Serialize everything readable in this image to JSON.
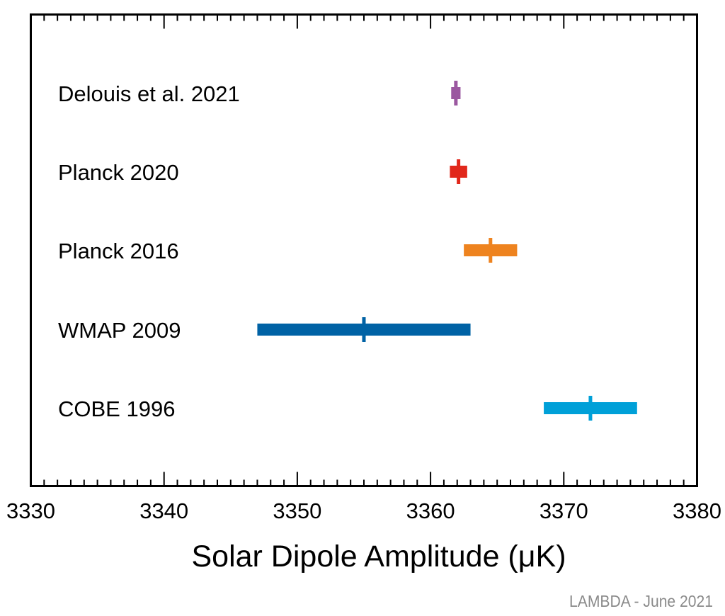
{
  "chart_data": {
    "type": "errorbar",
    "title": "",
    "xlabel": "Solar Dipole Amplitude (μK)",
    "ylabel": "",
    "xlim": [
      3330,
      3380
    ],
    "xticks": [
      3330,
      3340,
      3350,
      3360,
      3370,
      3380
    ],
    "xtick_labels": [
      "3330",
      "3340",
      "3350",
      "3360",
      "3370",
      "3380"
    ],
    "minor_tick_step": 1,
    "grid": false,
    "series": [
      {
        "name": "Delouis et al. 2021",
        "value": 3361.9,
        "low": 3361.55,
        "high": 3362.25,
        "color": "#9b58a0"
      },
      {
        "name": "Planck 2020",
        "value": 3362.1,
        "low": 3361.45,
        "high": 3362.75,
        "color": "#e1281b"
      },
      {
        "name": "Planck 2016",
        "value": 3364.5,
        "low": 3362.5,
        "high": 3366.5,
        "color": "#ee831f"
      },
      {
        "name": "WMAP 2009",
        "value": 3355.0,
        "low": 3347.0,
        "high": 3363.0,
        "color": "#0062a5"
      },
      {
        "name": "COBE 1996",
        "value": 3372.0,
        "low": 3368.5,
        "high": 3375.5,
        "color": "#00a0d8"
      }
    ]
  },
  "credit": "LAMBDA - June 2021"
}
